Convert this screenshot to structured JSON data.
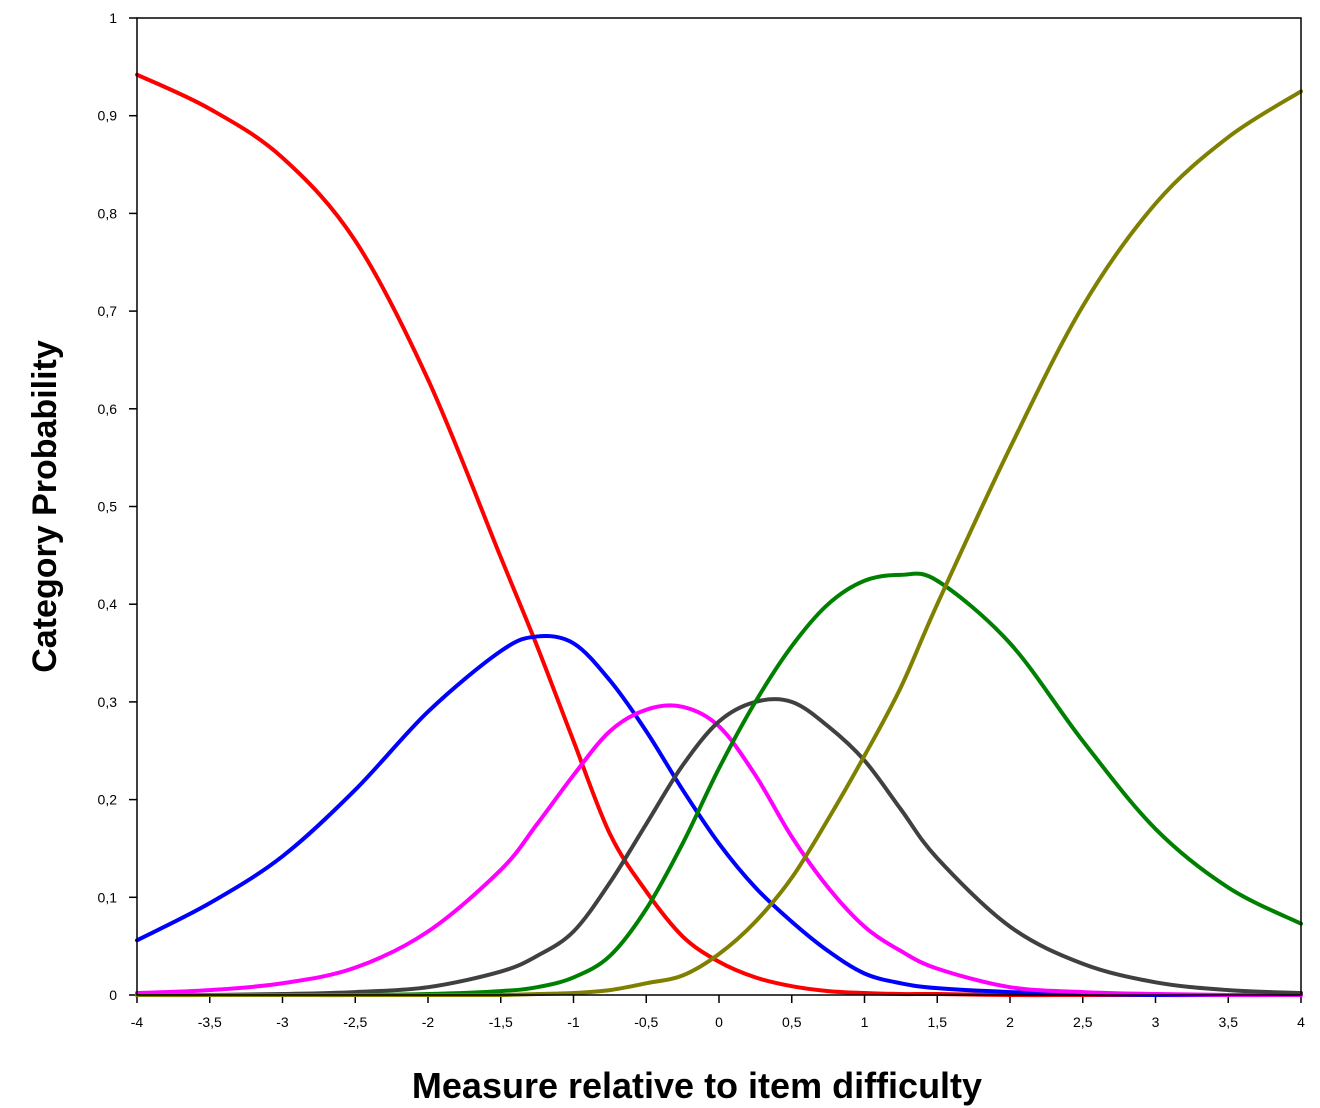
{
  "chart_data": {
    "type": "line",
    "title": "",
    "xlabel": "Measure relative to item difficulty",
    "ylabel": "Category Probability",
    "xlim": [
      -4,
      4
    ],
    "ylim": [
      0,
      1
    ],
    "grid": false,
    "legend": "none",
    "x_ticks": [
      {
        "value": -4,
        "label": "-4"
      },
      {
        "value": -3.5,
        "label": "-3,5"
      },
      {
        "value": -3,
        "label": "-3"
      },
      {
        "value": -2.5,
        "label": "-2,5"
      },
      {
        "value": -2,
        "label": "-2"
      },
      {
        "value": -1.5,
        "label": "-1,5"
      },
      {
        "value": -1,
        "label": "-1"
      },
      {
        "value": -0.5,
        "label": "-0,5"
      },
      {
        "value": 0,
        "label": "0"
      },
      {
        "value": 0.5,
        "label": "0,5"
      },
      {
        "value": 1,
        "label": "1"
      },
      {
        "value": 1.5,
        "label": "1,5"
      },
      {
        "value": 2,
        "label": "2"
      },
      {
        "value": 2.5,
        "label": "2,5"
      },
      {
        "value": 3,
        "label": "3"
      },
      {
        "value": 3.5,
        "label": "3,5"
      },
      {
        "value": 4,
        "label": "4"
      }
    ],
    "y_ticks": [
      {
        "value": 0,
        "label": "0"
      },
      {
        "value": 0.1,
        "label": "0,1"
      },
      {
        "value": 0.2,
        "label": "0,2"
      },
      {
        "value": 0.3,
        "label": "0,3"
      },
      {
        "value": 0.4,
        "label": "0,4"
      },
      {
        "value": 0.5,
        "label": "0,5"
      },
      {
        "value": 0.6,
        "label": "0,6"
      },
      {
        "value": 0.7,
        "label": "0,7"
      },
      {
        "value": 0.8,
        "label": "0,8"
      },
      {
        "value": 0.9,
        "label": "0,9"
      },
      {
        "value": 1,
        "label": "1"
      }
    ],
    "x": [
      -4,
      -3.5,
      -3,
      -2.5,
      -2,
      -1.5,
      -1.25,
      -1,
      -0.75,
      -0.5,
      -0.25,
      0,
      0.25,
      0.5,
      0.75,
      1,
      1.25,
      1.5,
      2,
      2.5,
      3,
      3.5,
      4
    ],
    "series": [
      {
        "color": "#ff0000",
        "values": [
          0.942,
          0.907,
          0.857,
          0.772,
          0.63,
          0.448,
          0.357,
          0.26,
          0.165,
          0.106,
          0.06,
          0.034,
          0.018,
          0.009,
          0.004,
          0.002,
          0.001,
          0.001,
          0.0,
          0.0,
          0.0,
          0.0,
          0.0
        ]
      },
      {
        "color": "#0000ff",
        "values": [
          0.056,
          0.094,
          0.142,
          0.21,
          0.29,
          0.352,
          0.367,
          0.36,
          0.322,
          0.27,
          0.21,
          0.155,
          0.11,
          0.075,
          0.045,
          0.022,
          0.012,
          0.007,
          0.003,
          0.001,
          0.0,
          0.0,
          0.0
        ]
      },
      {
        "color": "#ff00ff",
        "values": [
          0.002,
          0.005,
          0.012,
          0.028,
          0.065,
          0.128,
          0.175,
          0.225,
          0.27,
          0.292,
          0.295,
          0.275,
          0.225,
          0.162,
          0.11,
          0.07,
          0.045,
          0.027,
          0.008,
          0.003,
          0.001,
          0.0,
          0.0
        ]
      },
      {
        "color": "#404040",
        "values": [
          0.0,
          0.0,
          0.001,
          0.003,
          0.008,
          0.024,
          0.04,
          0.065,
          0.115,
          0.175,
          0.235,
          0.28,
          0.3,
          0.3,
          0.275,
          0.24,
          0.19,
          0.14,
          0.07,
          0.032,
          0.013,
          0.005,
          0.002
        ]
      },
      {
        "color": "#008000",
        "values": [
          0.0,
          0.0,
          0.0,
          0.0,
          0.001,
          0.004,
          0.008,
          0.018,
          0.04,
          0.088,
          0.155,
          0.232,
          0.3,
          0.357,
          0.4,
          0.424,
          0.43,
          0.424,
          0.36,
          0.26,
          0.17,
          0.11,
          0.073
        ]
      },
      {
        "color": "#808000",
        "values": [
          0.0,
          0.0,
          0.0,
          0.0,
          0.0,
          0.0,
          0.001,
          0.002,
          0.005,
          0.012,
          0.02,
          0.042,
          0.075,
          0.12,
          0.18,
          0.245,
          0.315,
          0.4,
          0.56,
          0.705,
          0.81,
          0.878,
          0.925
        ]
      }
    ]
  }
}
